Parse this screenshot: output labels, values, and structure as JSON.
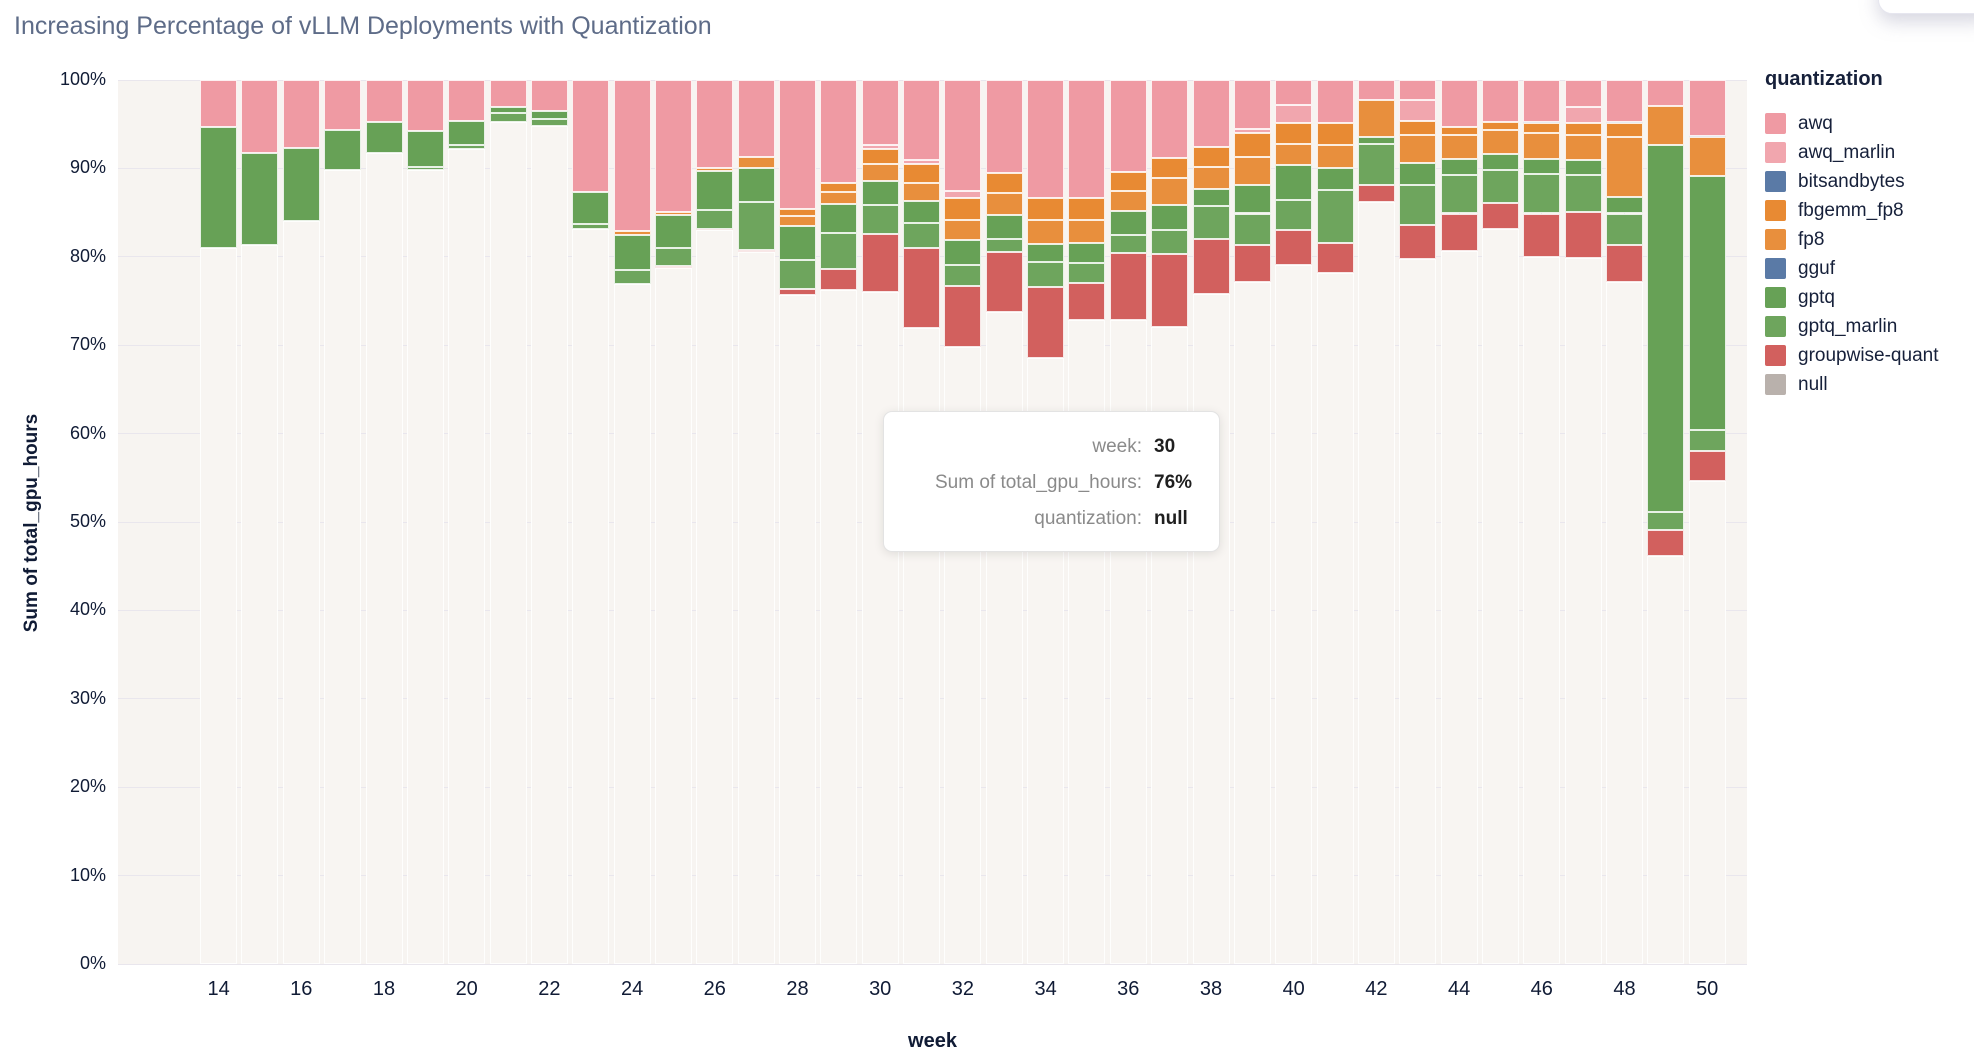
{
  "title": "Increasing Percentage of vLLM Deployments with Quantization",
  "axes": {
    "xlabel": "week",
    "ylabel": "Sum of total_gpu_hours"
  },
  "legend": {
    "title": "quantization",
    "items": [
      {
        "label": "awq",
        "color": "#ef9aa3"
      },
      {
        "label": "awq_marlin",
        "color": "#f1a6ae"
      },
      {
        "label": "bitsandbytes",
        "color": "#5a7aa6"
      },
      {
        "label": "fbgemm_fp8",
        "color": "#e88a33"
      },
      {
        "label": "fp8",
        "color": "#e88f3d"
      },
      {
        "label": "gguf",
        "color": "#5a7aa6"
      },
      {
        "label": "gptq",
        "color": "#67a156"
      },
      {
        "label": "gptq_marlin",
        "color": "#6ea55d"
      },
      {
        "label": "groupwise-quant",
        "color": "#d2605e"
      },
      {
        "label": "null",
        "color": "#b9b1ac"
      }
    ]
  },
  "tooltip": {
    "rows": [
      {
        "label": "week:",
        "value": "30"
      },
      {
        "label": "Sum of total_gpu_hours:",
        "value": "76%"
      },
      {
        "label": "quantization:",
        "value": "null"
      }
    ]
  },
  "chart_data": {
    "type": "bar",
    "stacked": true,
    "normalized_percent": true,
    "title": "Increasing Percentage of vLLM Deployments with Quantization",
    "xlabel": "week",
    "ylabel": "Sum of total_gpu_hours",
    "xlim": [
      12.5,
      51
    ],
    "ylim": [
      0,
      100
    ],
    "x_ticks": [
      14,
      16,
      18,
      20,
      22,
      24,
      26,
      28,
      30,
      32,
      34,
      36,
      38,
      40,
      42,
      44,
      46,
      48,
      50
    ],
    "y_ticks_percent": [
      0,
      10,
      20,
      30,
      40,
      50,
      60,
      70,
      80,
      90,
      100
    ],
    "grid": true,
    "legend_position": "right",
    "stack_order_bottom_to_top": [
      "null",
      "groupwise-quant",
      "gptq_marlin",
      "gptq",
      "gguf",
      "fp8",
      "fbgemm_fp8",
      "bitsandbytes",
      "awq_marlin",
      "awq"
    ],
    "colors": {
      "awq": "#ef9aa3",
      "awq_marlin": "#f1a6ae",
      "bitsandbytes": "#5a7aa6",
      "fbgemm_fp8": "#e88a33",
      "fp8": "#e88f3d",
      "gguf": "#5a7aa6",
      "gptq": "#67a156",
      "gptq_marlin": "#6ea55d",
      "groupwise-quant": "#d2605e",
      "null": "#f8f5f2"
    },
    "series_note": "segments are [quantization, percent_of_week_total] listed bottom-to-top; each week sums to 100",
    "weeks": [
      {
        "week": 14,
        "segments": [
          [
            "null",
            81.0
          ],
          [
            "gptq",
            13.7
          ],
          [
            "awq",
            5.3
          ]
        ]
      },
      {
        "week": 15,
        "segments": [
          [
            "null",
            81.3
          ],
          [
            "gptq",
            10.4
          ],
          [
            "awq",
            8.3
          ]
        ]
      },
      {
        "week": 16,
        "segments": [
          [
            "null",
            84.1
          ],
          [
            "gptq",
            8.2
          ],
          [
            "awq",
            7.7
          ]
        ]
      },
      {
        "week": 17,
        "segments": [
          [
            "null",
            89.8
          ],
          [
            "gptq",
            4.6
          ],
          [
            "awq",
            5.6
          ]
        ]
      },
      {
        "week": 18,
        "segments": [
          [
            "null",
            91.8
          ],
          [
            "gptq",
            3.5
          ],
          [
            "awq",
            4.7
          ]
        ]
      },
      {
        "week": 19,
        "segments": [
          [
            "null",
            89.8
          ],
          [
            "gptq_marlin",
            0.4
          ],
          [
            "gptq",
            4.0
          ],
          [
            "awq",
            5.8
          ]
        ]
      },
      {
        "week": 20,
        "segments": [
          [
            "null",
            92.2
          ],
          [
            "gptq_marlin",
            0.4
          ],
          [
            "gptq",
            2.8
          ],
          [
            "awq",
            4.6
          ]
        ]
      },
      {
        "week": 21,
        "segments": [
          [
            "null",
            95.2
          ],
          [
            "gptq_marlin",
            1.1
          ],
          [
            "gptq",
            0.6
          ],
          [
            "awq",
            3.1
          ]
        ]
      },
      {
        "week": 22,
        "segments": [
          [
            "null",
            94.8
          ],
          [
            "gptq_marlin",
            0.8
          ],
          [
            "gptq",
            0.9
          ],
          [
            "awq",
            3.5
          ]
        ]
      },
      {
        "week": 23,
        "segments": [
          [
            "null",
            83.1
          ],
          [
            "gptq_marlin",
            0.6
          ],
          [
            "gptq",
            3.6
          ],
          [
            "awq",
            12.7
          ]
        ]
      },
      {
        "week": 24,
        "segments": [
          [
            "null",
            76.9
          ],
          [
            "gptq_marlin",
            1.6
          ],
          [
            "gptq",
            4.0
          ],
          [
            "fp8",
            0.4
          ],
          [
            "awq",
            17.1
          ]
        ]
      },
      {
        "week": 25,
        "segments": [
          [
            "null",
            78.7
          ],
          [
            "groupwise-quant",
            0.3
          ],
          [
            "gptq_marlin",
            2.0
          ],
          [
            "gptq",
            3.7
          ],
          [
            "fp8",
            0.4
          ],
          [
            "awq",
            14.9
          ]
        ]
      },
      {
        "week": 26,
        "segments": [
          [
            "null",
            83.0
          ],
          [
            "groupwise-quant",
            0.2
          ],
          [
            "gptq_marlin",
            2.1
          ],
          [
            "gptq",
            4.4
          ],
          [
            "fp8",
            0.4
          ],
          [
            "awq",
            9.9
          ]
        ]
      },
      {
        "week": 27,
        "segments": [
          [
            "null",
            80.5
          ],
          [
            "groupwise-quant",
            0.3
          ],
          [
            "gptq_marlin",
            5.4
          ],
          [
            "gptq",
            3.9
          ],
          [
            "fp8",
            1.2
          ],
          [
            "awq",
            8.7
          ]
        ]
      },
      {
        "week": 28,
        "segments": [
          [
            "null",
            75.7
          ],
          [
            "groupwise-quant",
            0.7
          ],
          [
            "gptq_marlin",
            3.2
          ],
          [
            "gptq",
            3.9
          ],
          [
            "fp8",
            1.1
          ],
          [
            "fbgemm_fp8",
            0.8
          ],
          [
            "awq",
            14.6
          ]
        ]
      },
      {
        "week": 29,
        "segments": [
          [
            "null",
            76.2
          ],
          [
            "groupwise-quant",
            2.4
          ],
          [
            "gptq_marlin",
            4.1
          ],
          [
            "gptq",
            3.3
          ],
          [
            "fp8",
            1.3
          ],
          [
            "fbgemm_fp8",
            1.1
          ],
          [
            "awq",
            11.6
          ]
        ]
      },
      {
        "week": 30,
        "segments": [
          [
            "null",
            76.0
          ],
          [
            "groupwise-quant",
            6.6
          ],
          [
            "gptq_marlin",
            3.3
          ],
          [
            "gptq",
            2.7
          ],
          [
            "fp8",
            1.9
          ],
          [
            "fbgemm_fp8",
            1.7
          ],
          [
            "awq_marlin",
            0.4
          ],
          [
            "awq",
            7.4
          ]
        ]
      },
      {
        "week": 31,
        "segments": [
          [
            "null",
            71.9
          ],
          [
            "groupwise-quant",
            9.1
          ],
          [
            "gptq_marlin",
            2.8
          ],
          [
            "gptq",
            2.5
          ],
          [
            "fp8",
            2.1
          ],
          [
            "fbgemm_fp8",
            2.1
          ],
          [
            "awq_marlin",
            0.5
          ],
          [
            "awq",
            9.0
          ]
        ]
      },
      {
        "week": 32,
        "segments": [
          [
            "null",
            69.8
          ],
          [
            "groupwise-quant",
            6.9
          ],
          [
            "gptq_marlin",
            2.4
          ],
          [
            "gptq",
            2.8
          ],
          [
            "fp8",
            2.3
          ],
          [
            "fbgemm_fp8",
            2.4
          ],
          [
            "awq_marlin",
            0.8
          ],
          [
            "awq",
            12.6
          ]
        ]
      },
      {
        "week": 33,
        "segments": [
          [
            "null",
            73.8
          ],
          [
            "groupwise-quant",
            6.7
          ],
          [
            "gptq_marlin",
            1.5
          ],
          [
            "gptq",
            2.7
          ],
          [
            "fp8",
            2.5
          ],
          [
            "fbgemm_fp8",
            2.3
          ],
          [
            "awq",
            10.5
          ]
        ]
      },
      {
        "week": 34,
        "segments": [
          [
            "null",
            68.5
          ],
          [
            "groupwise-quant",
            8.1
          ],
          [
            "gptq_marlin",
            2.8
          ],
          [
            "gptq",
            2.1
          ],
          [
            "fp8",
            2.7
          ],
          [
            "fbgemm_fp8",
            2.4
          ],
          [
            "awq",
            13.4
          ]
        ]
      },
      {
        "week": 35,
        "segments": [
          [
            "null",
            72.9
          ],
          [
            "groupwise-quant",
            4.1
          ],
          [
            "gptq_marlin",
            2.3
          ],
          [
            "gptq",
            2.3
          ],
          [
            "fp8",
            2.6
          ],
          [
            "fbgemm_fp8",
            2.5
          ],
          [
            "awq",
            13.3
          ]
        ]
      },
      {
        "week": 36,
        "segments": [
          [
            "null",
            72.9
          ],
          [
            "groupwise-quant",
            7.5
          ],
          [
            "gptq_marlin",
            2.1
          ],
          [
            "gptq",
            2.7
          ],
          [
            "fp8",
            2.2
          ],
          [
            "fbgemm_fp8",
            2.2
          ],
          [
            "awq",
            10.4
          ]
        ]
      },
      {
        "week": 37,
        "segments": [
          [
            "null",
            72.1
          ],
          [
            "groupwise-quant",
            8.2
          ],
          [
            "gptq_marlin",
            2.7
          ],
          [
            "gptq",
            2.9
          ],
          [
            "fp8",
            3.0
          ],
          [
            "fbgemm_fp8",
            2.3
          ],
          [
            "awq",
            8.8
          ]
        ]
      },
      {
        "week": 38,
        "segments": [
          [
            "null",
            75.8
          ],
          [
            "groupwise-quant",
            6.2
          ],
          [
            "gptq_marlin",
            3.7
          ],
          [
            "gptq",
            2.0
          ],
          [
            "fp8",
            2.5
          ],
          [
            "fbgemm_fp8",
            2.2
          ],
          [
            "awq",
            7.6
          ]
        ]
      },
      {
        "week": 39,
        "segments": [
          [
            "null",
            77.2
          ],
          [
            "groupwise-quant",
            4.1
          ],
          [
            "gptq_marlin",
            3.6
          ],
          [
            "gptq",
            3.2
          ],
          [
            "fp8",
            3.2
          ],
          [
            "fbgemm_fp8",
            2.7
          ],
          [
            "awq_marlin",
            0.5
          ],
          [
            "awq",
            5.5
          ]
        ]
      },
      {
        "week": 40,
        "segments": [
          [
            "null",
            79.1
          ],
          [
            "groupwise-quant",
            3.9
          ],
          [
            "gptq_marlin",
            3.4
          ],
          [
            "gptq",
            4.0
          ],
          [
            "fp8",
            2.4
          ],
          [
            "fbgemm_fp8",
            2.3
          ],
          [
            "awq_marlin",
            2.1
          ],
          [
            "awq",
            2.8
          ]
        ]
      },
      {
        "week": 41,
        "segments": [
          [
            "null",
            78.2
          ],
          [
            "groupwise-quant",
            3.4
          ],
          [
            "gptq_marlin",
            6.0
          ],
          [
            "gptq",
            2.5
          ],
          [
            "fp8",
            2.5
          ],
          [
            "fbgemm_fp8",
            2.5
          ],
          [
            "awq",
            4.9
          ]
        ]
      },
      {
        "week": 42,
        "segments": [
          [
            "null",
            86.2
          ],
          [
            "groupwise-quant",
            1.9
          ],
          [
            "gptq_marlin",
            4.7
          ],
          [
            "gptq",
            0.8
          ],
          [
            "fp8",
            4.1
          ],
          [
            "awq",
            2.3
          ]
        ]
      },
      {
        "week": 43,
        "segments": [
          [
            "null",
            79.7
          ],
          [
            "groupwise-quant",
            3.9
          ],
          [
            "gptq_marlin",
            4.5
          ],
          [
            "gptq",
            2.5
          ],
          [
            "fp8",
            3.2
          ],
          [
            "fbgemm_fp8",
            1.6
          ],
          [
            "awq_marlin",
            2.3
          ],
          [
            "awq",
            2.3
          ]
        ]
      },
      {
        "week": 44,
        "segments": [
          [
            "null",
            80.7
          ],
          [
            "groupwise-quant",
            4.2
          ],
          [
            "gptq_marlin",
            4.4
          ],
          [
            "gptq",
            1.8
          ],
          [
            "fp8",
            2.7
          ],
          [
            "fbgemm_fp8",
            0.9
          ],
          [
            "awq",
            5.3
          ]
        ]
      },
      {
        "week": 45,
        "segments": [
          [
            "null",
            83.2
          ],
          [
            "groupwise-quant",
            2.9
          ],
          [
            "gptq_marlin",
            3.7
          ],
          [
            "gptq",
            1.8
          ],
          [
            "fp8",
            2.7
          ],
          [
            "fbgemm_fp8",
            1.0
          ],
          [
            "awq",
            4.7
          ]
        ]
      },
      {
        "week": 46,
        "segments": [
          [
            "null",
            80.0
          ],
          [
            "groupwise-quant",
            4.9
          ],
          [
            "gptq_marlin",
            4.5
          ],
          [
            "gptq",
            1.7
          ],
          [
            "fp8",
            2.9
          ],
          [
            "fbgemm_fp8",
            1.1
          ],
          [
            "bitsandbytes",
            0.2
          ],
          [
            "awq",
            4.7
          ]
        ]
      },
      {
        "week": 47,
        "segments": [
          [
            "null",
            79.9
          ],
          [
            "groupwise-quant",
            5.2
          ],
          [
            "gptq_marlin",
            4.2
          ],
          [
            "gptq",
            1.7
          ],
          [
            "fp8",
            2.8
          ],
          [
            "fbgemm_fp8",
            1.3
          ],
          [
            "awq_marlin",
            1.9
          ],
          [
            "awq",
            3.0
          ]
        ]
      },
      {
        "week": 48,
        "segments": [
          [
            "null",
            77.2
          ],
          [
            "groupwise-quant",
            4.1
          ],
          [
            "gptq_marlin",
            3.6
          ],
          [
            "gptq",
            1.9
          ],
          [
            "fp8",
            6.7
          ],
          [
            "fbgemm_fp8",
            1.6
          ],
          [
            "bitsandbytes",
            0.2
          ],
          [
            "awq",
            4.7
          ]
        ]
      },
      {
        "week": 49,
        "segments": [
          [
            "null",
            46.1
          ],
          [
            "groupwise-quant",
            3.0
          ],
          [
            "gptq_marlin",
            2.0
          ],
          [
            "gptq",
            41.5
          ],
          [
            "fp8",
            4.5
          ],
          [
            "awq",
            2.9
          ]
        ]
      },
      {
        "week": 50,
        "segments": [
          [
            "null",
            54.6
          ],
          [
            "groupwise-quant",
            3.4
          ],
          [
            "gptq_marlin",
            2.4
          ],
          [
            "gptq",
            28.7
          ],
          [
            "fp8",
            4.4
          ],
          [
            "bitsandbytes",
            0.2
          ],
          [
            "awq",
            6.3
          ]
        ]
      }
    ]
  }
}
